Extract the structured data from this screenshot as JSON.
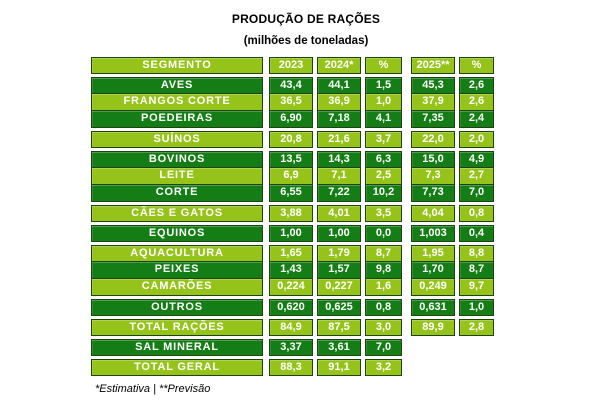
{
  "colors": {
    "dark_green": "#157D15",
    "light_green": "#96C319",
    "border_green": "#1D4311",
    "cell_text": "#FFFFFF",
    "title_text": "#000000"
  },
  "chart_data": {
    "type": "table",
    "title": "PRODUÇÃO DE RAÇÕES",
    "subtitle": "(milhões de toneladas)",
    "footnote": "*Estimativa | **Previsão",
    "columns": [
      "SEGMENTO",
      "2023",
      "2024*",
      "%",
      "2025**",
      "%"
    ],
    "blocks": [
      [
        {
          "segment": "AVES",
          "values": [
            "43,4",
            "44,1",
            "1,5",
            "45,3",
            "2,6"
          ]
        },
        {
          "segment": "FRANGOS CORTE",
          "values": [
            "36,5",
            "36,9",
            "1,0",
            "37,9",
            "2,6"
          ]
        },
        {
          "segment": "POEDEIRAS",
          "values": [
            "6,90",
            "7,18",
            "4,1",
            "7,35",
            "2,4"
          ]
        }
      ],
      [
        {
          "segment": "SUÍNOS",
          "values": [
            "20,8",
            "21,6",
            "3,7",
            "22,0",
            "2,0"
          ]
        }
      ],
      [
        {
          "segment": "BOVINOS",
          "values": [
            "13,5",
            "14,3",
            "6,3",
            "15,0",
            "4,9"
          ]
        },
        {
          "segment": "LEITE",
          "values": [
            "6,9",
            "7,1",
            "2,5",
            "7,3",
            "2,7"
          ]
        },
        {
          "segment": "CORTE",
          "values": [
            "6,55",
            "7,22",
            "10,2",
            "7,73",
            "7,0"
          ]
        }
      ],
      [
        {
          "segment": "CÃES E GATOS",
          "values": [
            "3,88",
            "4,01",
            "3,5",
            "4,04",
            "0,8"
          ]
        }
      ],
      [
        {
          "segment": "EQUINOS",
          "values": [
            "1,00",
            "1,00",
            "0,0",
            "1,003",
            "0,4"
          ]
        }
      ],
      [
        {
          "segment": "AQUACULTURA",
          "values": [
            "1,65",
            "1,79",
            "8,7",
            "1,95",
            "8,8"
          ]
        },
        {
          "segment": "PEIXES",
          "values": [
            "1,43",
            "1,57",
            "9,8",
            "1,70",
            "8,7"
          ]
        },
        {
          "segment": "CAMARÕES",
          "values": [
            "0,224",
            "0,227",
            "1,6",
            "0,249",
            "9,7"
          ]
        }
      ],
      [
        {
          "segment": "OUTROS",
          "values": [
            "0,620",
            "0,625",
            "0,8",
            "0,631",
            "1,0"
          ]
        }
      ],
      [
        {
          "segment": "TOTAL RAÇÕES",
          "values": [
            "84,9",
            "87,5",
            "3,0",
            "89,9",
            "2,8"
          ]
        }
      ],
      [
        {
          "segment": "SAL MINERAL",
          "values": [
            "3,37",
            "3,61",
            "7,0",
            null,
            null
          ]
        }
      ],
      [
        {
          "segment": "TOTAL GERAL",
          "values": [
            "88,3",
            "91,1",
            "3,2",
            null,
            null
          ]
        }
      ]
    ]
  }
}
